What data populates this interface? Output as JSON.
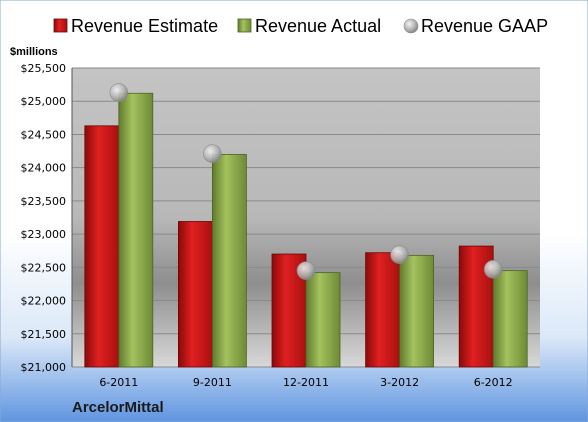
{
  "chart_data": {
    "type": "bar",
    "company": "ArcelorMittal",
    "ylabel": "$millions",
    "categories": [
      "6-2011",
      "9-2011",
      "12-2011",
      "3-2012",
      "6-2012"
    ],
    "series": [
      {
        "name": "Revenue Estimate",
        "kind": "bar",
        "color": "#cc1111",
        "values": [
          24630,
          23190,
          22700,
          22720,
          22820
        ]
      },
      {
        "name": "Revenue Actual",
        "kind": "bar",
        "color": "#8caa4a",
        "values": [
          25120,
          24200,
          22420,
          22680,
          22450
        ]
      },
      {
        "name": "Revenue GAAP",
        "kind": "marker",
        "color": "#b8b8b8",
        "values": [
          25130,
          24210,
          22450,
          22690,
          22470
        ]
      }
    ],
    "ylim": [
      21000,
      25500
    ],
    "yticks": [
      21000,
      21500,
      22000,
      22500,
      23000,
      23500,
      24000,
      24500,
      25000,
      25500
    ],
    "ytick_labels": [
      "$21,000",
      "$21,500",
      "$22,000",
      "$22,500",
      "$23,000",
      "$23,500",
      "$24,000",
      "$24,500",
      "$25,000",
      "$25,500"
    ],
    "grid": true,
    "legend_position": "top"
  }
}
